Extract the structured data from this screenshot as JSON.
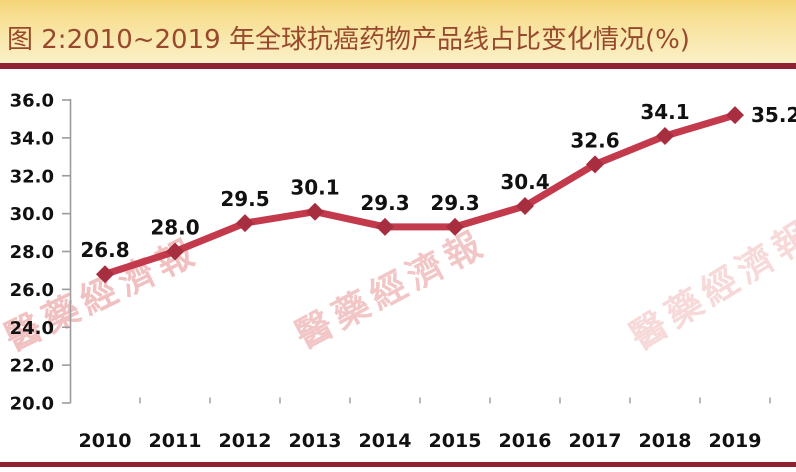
{
  "header": {
    "title": "图 2:2010~2019 年全球抗癌药物产品线占比变化情况(%)"
  },
  "watermark": {
    "text": "醫藥經濟報"
  },
  "colors": {
    "line": "#c33a4c",
    "marker": "#a62e3f",
    "rule": "#8e2233",
    "title_text": "#98492d",
    "axis": "#9b9b9b",
    "label": "#111111",
    "watermark": "#e78f8f",
    "header_gradient_top": "#f4d576",
    "header_gradient_bottom": "#fbf0c8"
  },
  "chart_data": {
    "type": "line",
    "title": "图 2:2010~2019 年全球抗癌药物产品线占比变化情况(%)",
    "categories": [
      "2010",
      "2011",
      "2012",
      "2013",
      "2014",
      "2015",
      "2016",
      "2017",
      "2018",
      "2019"
    ],
    "values": [
      26.8,
      28.0,
      29.5,
      30.1,
      29.3,
      29.3,
      30.4,
      32.6,
      34.1,
      35.2
    ],
    "xlabel": "",
    "ylabel": "",
    "ylim": [
      20.0,
      36.0
    ],
    "ytick_step": 2.0,
    "ytick_labels": [
      "36.0",
      "34.0",
      "32.0",
      "30.0",
      "28.0",
      "26.0",
      "24.0",
      "22.0",
      "20.0"
    ],
    "grid": false,
    "legend": "none",
    "data_labels": true,
    "marker_shape": "diamond"
  }
}
